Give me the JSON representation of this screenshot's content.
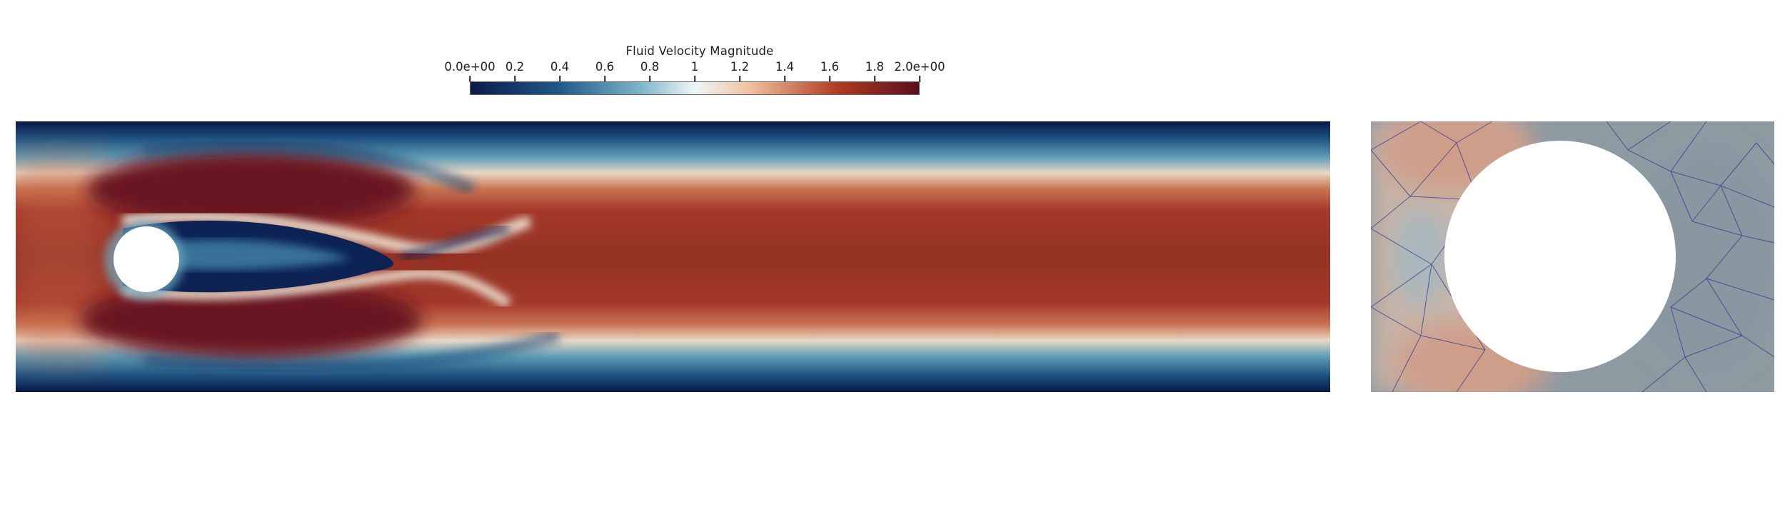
{
  "colorbar": {
    "title": "Fluid Velocity Magnitude",
    "tick_labels": [
      "0.0e+00",
      "0.2",
      "0.4",
      "0.6",
      "0.8",
      "1",
      "1.2",
      "1.4",
      "1.6",
      "1.8",
      "2.0e+00"
    ],
    "colormap": "diverging blue-white-red",
    "range": [
      0,
      2
    ],
    "colors": {
      "min": "#0b1a4a",
      "low": "#1f5a8a",
      "mid_low": "#7fb5c9",
      "mid": "#eef7f8",
      "mid_high": "#f1c2a0",
      "high": "#b03a22",
      "max": "#5a0f1e"
    }
  },
  "panels": {
    "flow": {
      "description_name": "channel-flow"
    },
    "zoom": {
      "description_name": "cylinder-mesh-zoom"
    }
  }
}
